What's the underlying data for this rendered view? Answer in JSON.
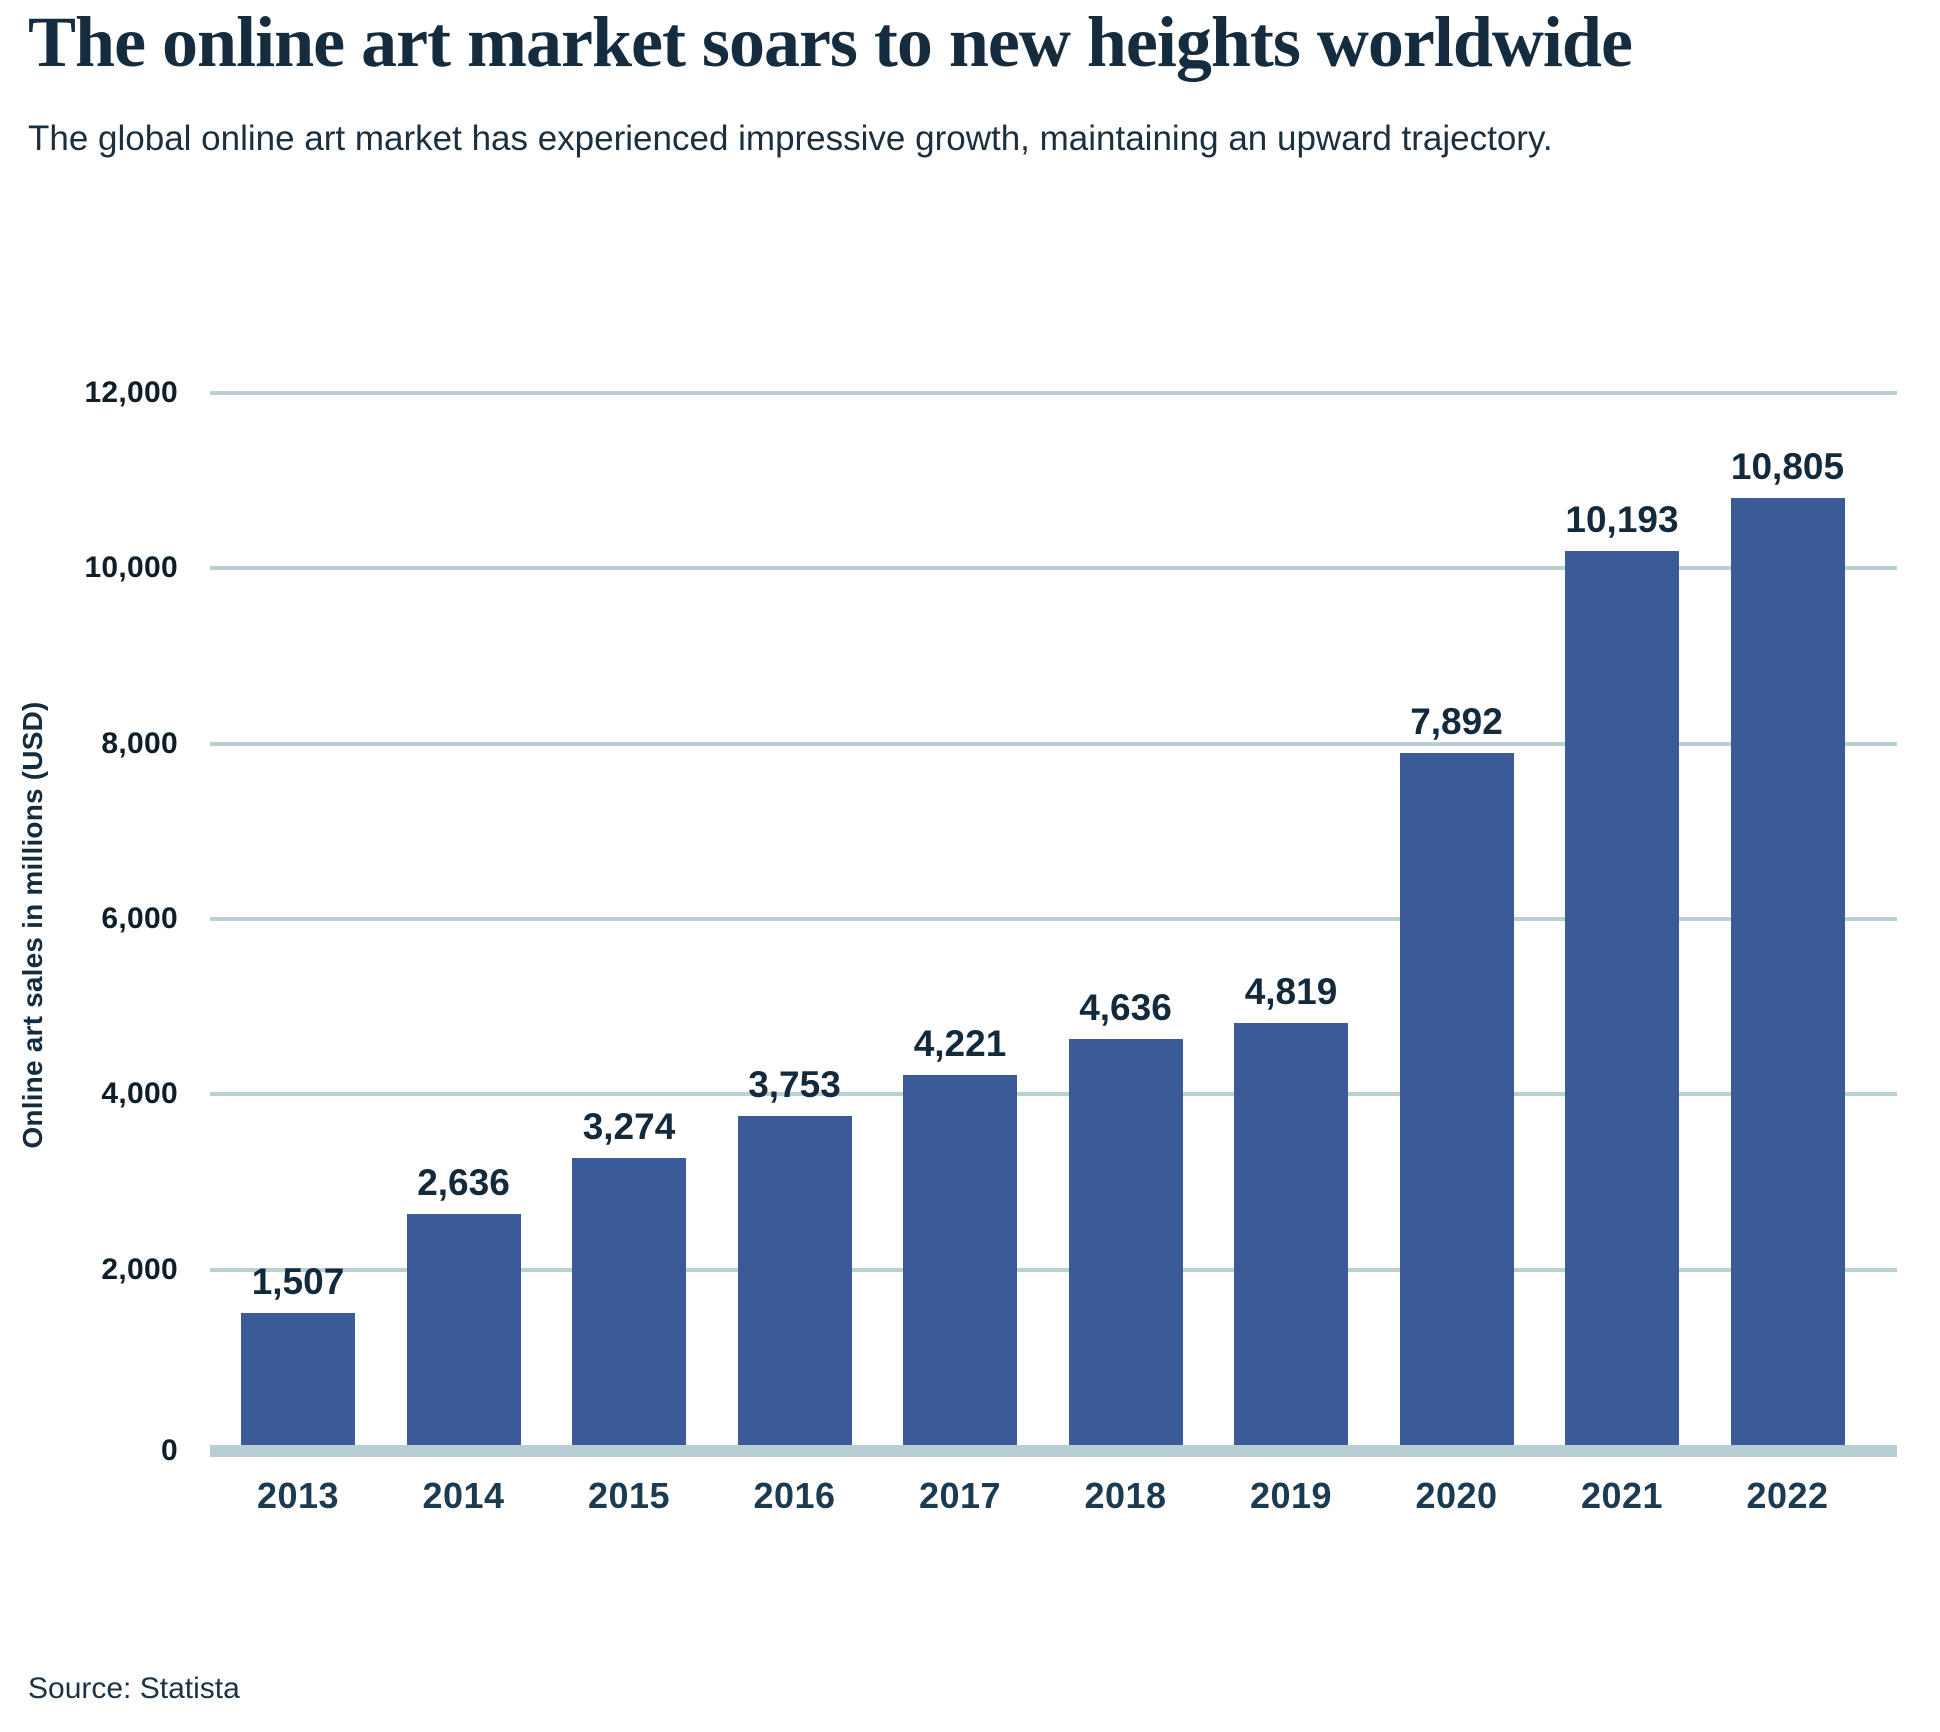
{
  "header": {
    "title": "The online art market soars to new heights worldwide",
    "subtitle": "The global online art market has experienced impressive growth, maintaining an upward trajectory."
  },
  "source": {
    "label": "Source: Statista"
  },
  "chart_data": {
    "type": "bar",
    "title": "The online art market soars to new heights worldwide",
    "subtitle": "The global online art market has experienced impressive growth, maintaining an upward trajectory.",
    "categories": [
      "2013",
      "2014",
      "2015",
      "2016",
      "2017",
      "2018",
      "2019",
      "2020",
      "2021",
      "2022"
    ],
    "values": [
      1507,
      2636,
      3274,
      3753,
      4221,
      4636,
      4819,
      7892,
      10193,
      10805
    ],
    "value_labels": [
      "1,507",
      "2,636",
      "3,274",
      "3,753",
      "4,221",
      "4,636",
      "4,819",
      "7,892",
      "10,193",
      "10,805"
    ],
    "xlabel": "",
    "ylabel": "Online art sales in millions (USD)",
    "ylim": [
      0,
      12000
    ],
    "ytick_interval": 2000,
    "yticks": [
      {
        "value": 0,
        "label": "0"
      },
      {
        "value": 2000,
        "label": "2,000"
      },
      {
        "value": 4000,
        "label": "4,000"
      },
      {
        "value": 6000,
        "label": "6,000"
      },
      {
        "value": 8000,
        "label": "8,000"
      },
      {
        "value": 10000,
        "label": "10,000"
      },
      {
        "value": 12000,
        "label": "12,000"
      }
    ],
    "grid": "horizontal-only",
    "legend": "none",
    "data_labels": "above-bars",
    "source": "Source: Statista",
    "colors": {
      "bar": "#3a5b98",
      "gridline": "#b9d0d4",
      "baseline": "#b7ced2",
      "title": "#152c3e",
      "subtitle": "#1c2f3e",
      "value": "#13293c",
      "tick": "#0f1f2a",
      "year": "#1d3b50",
      "source": "#1d3345",
      "background": "#ffffff"
    }
  }
}
